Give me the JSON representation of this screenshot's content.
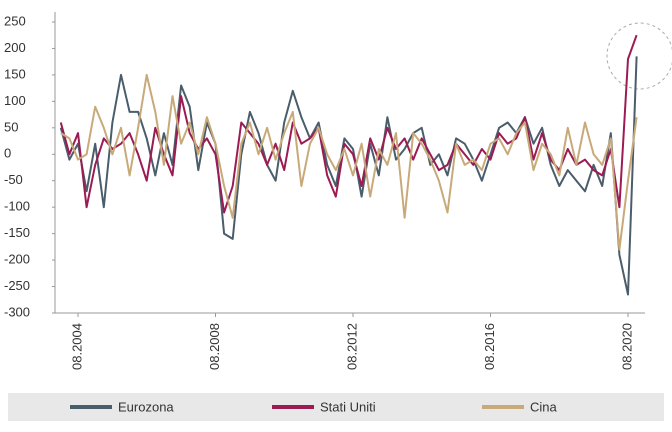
{
  "chart_data": {
    "type": "line",
    "categories": [
      null,
      null,
      "08.2004",
      null,
      null,
      null,
      null,
      null,
      null,
      null,
      null,
      null,
      null,
      null,
      null,
      null,
      null,
      null,
      "08.2008",
      null,
      null,
      null,
      null,
      null,
      null,
      null,
      null,
      null,
      null,
      null,
      null,
      null,
      null,
      null,
      "08.2012",
      null,
      null,
      null,
      null,
      null,
      null,
      null,
      null,
      null,
      null,
      null,
      null,
      null,
      null,
      null,
      "08.2016",
      null,
      null,
      null,
      null,
      null,
      null,
      null,
      null,
      null,
      null,
      null,
      null,
      null,
      null,
      null,
      "08.2020",
      null
    ],
    "series": [
      {
        "name": "Eurozona",
        "color": "#4a5d6b",
        "values": [
          50,
          -10,
          20,
          -70,
          20,
          -100,
          60,
          150,
          80,
          80,
          30,
          -40,
          40,
          -20,
          130,
          90,
          -30,
          60,
          20,
          -150,
          -160,
          0,
          80,
          40,
          -20,
          -50,
          60,
          120,
          70,
          30,
          60,
          -20,
          -60,
          30,
          10,
          -80,
          20,
          -40,
          70,
          -10,
          10,
          40,
          50,
          -20,
          0,
          -40,
          30,
          20,
          -10,
          -50,
          0,
          50,
          60,
          40,
          70,
          20,
          50,
          -20,
          -60,
          -30,
          -50,
          -70,
          -20,
          -60,
          40,
          -190,
          -265,
          185
        ]
      },
      {
        "name": "Stati Uniti",
        "color": "#9b1b52",
        "values": [
          60,
          0,
          40,
          -100,
          -20,
          30,
          10,
          20,
          40,
          0,
          -50,
          50,
          0,
          -40,
          110,
          40,
          10,
          30,
          0,
          -110,
          -60,
          60,
          40,
          20,
          -20,
          20,
          -30,
          60,
          20,
          30,
          50,
          -40,
          -80,
          20,
          0,
          -60,
          30,
          -10,
          50,
          10,
          30,
          -10,
          30,
          0,
          -30,
          -20,
          20,
          0,
          -20,
          10,
          -10,
          40,
          20,
          30,
          70,
          -10,
          40,
          -10,
          -30,
          10,
          -20,
          -10,
          -30,
          -40,
          10,
          -100,
          180,
          225
        ]
      },
      {
        "name": "Cina",
        "color": "#c8aa7a",
        "values": [
          40,
          30,
          -10,
          0,
          90,
          50,
          0,
          50,
          -40,
          50,
          150,
          80,
          -20,
          110,
          20,
          60,
          0,
          70,
          20,
          -60,
          -120,
          20,
          60,
          0,
          50,
          -10,
          40,
          80,
          -60,
          20,
          50,
          0,
          -30,
          10,
          -40,
          20,
          -80,
          10,
          -20,
          40,
          -120,
          40,
          20,
          -10,
          -50,
          -110,
          20,
          -20,
          -10,
          -30,
          20,
          30,
          0,
          40,
          60,
          -30,
          20,
          0,
          -40,
          50,
          -20,
          60,
          0,
          -20,
          30,
          -180,
          -50,
          70
        ]
      }
    ],
    "ylim": [
      -300,
      250
    ],
    "yticks": [
      -300,
      -250,
      -200,
      -150,
      -100,
      -50,
      0,
      50,
      100,
      150,
      200,
      250
    ]
  }
}
